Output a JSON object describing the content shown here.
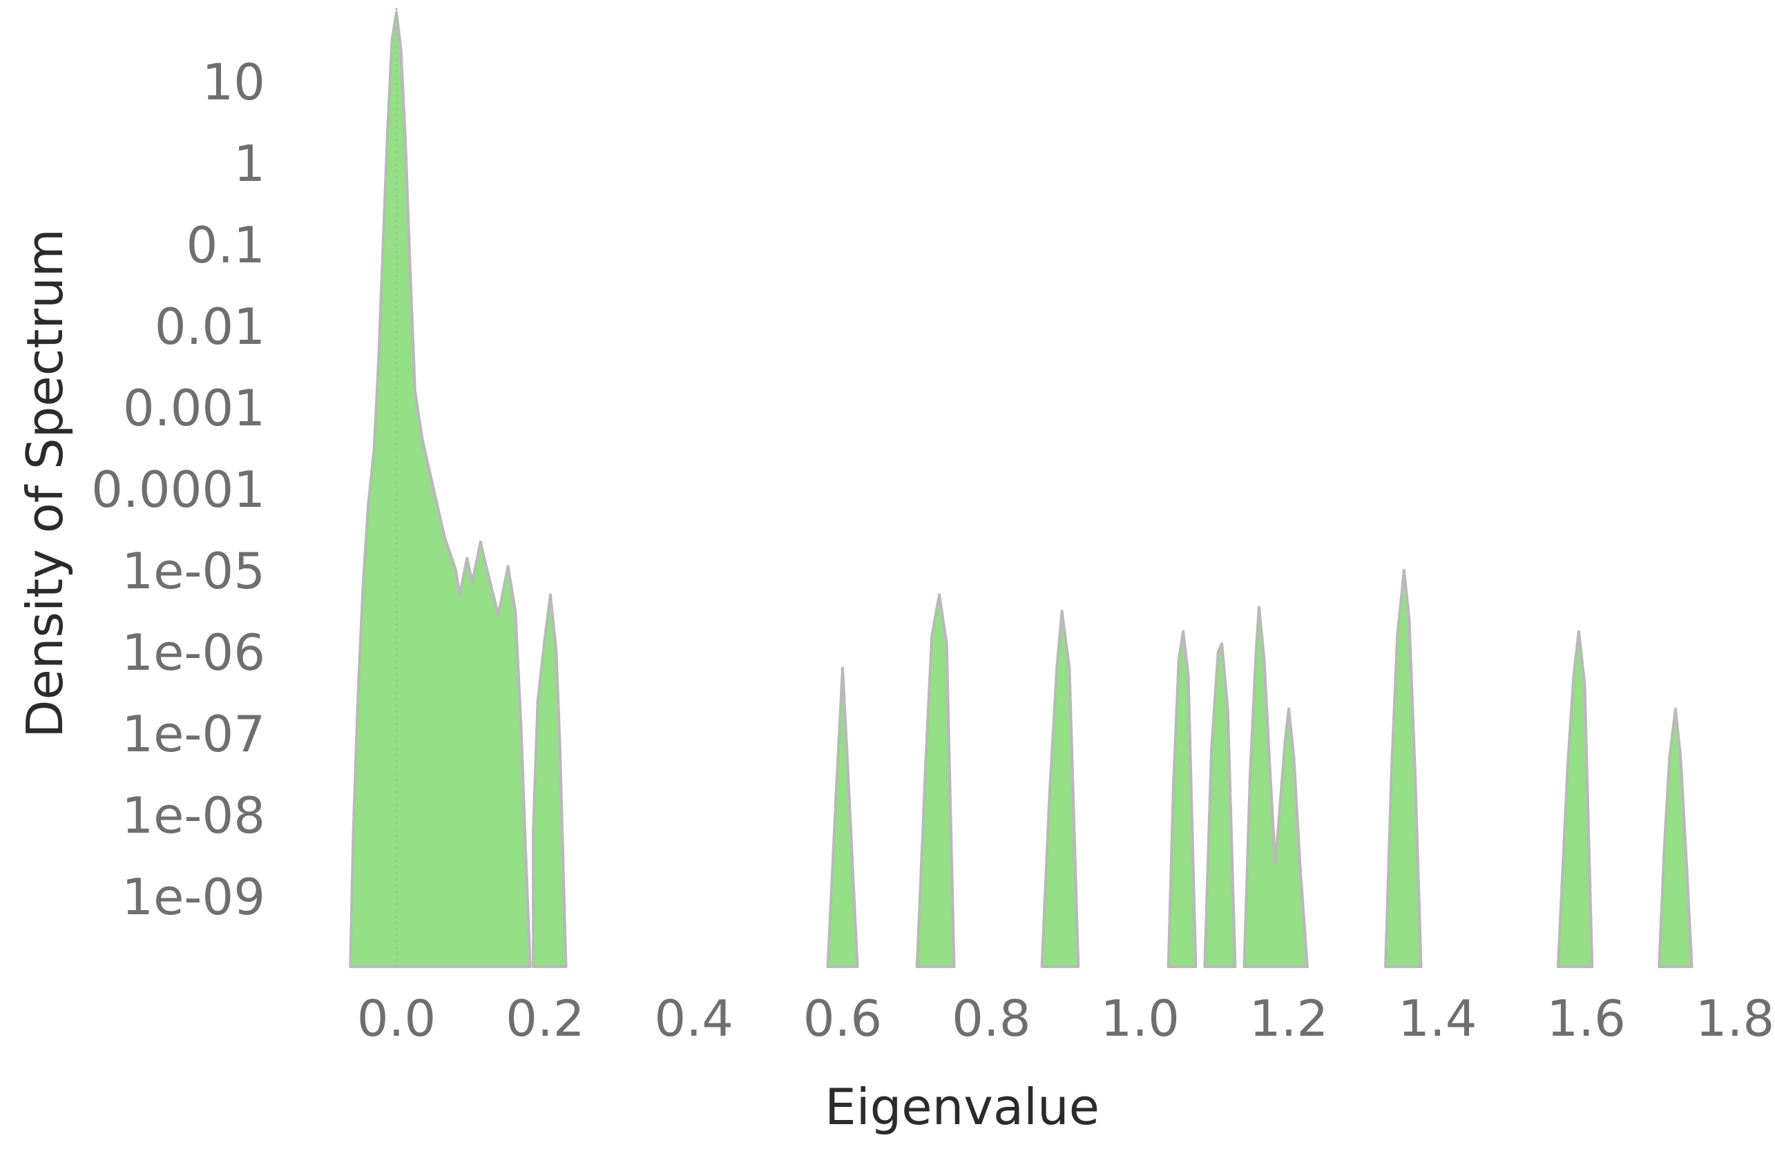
{
  "chart_data": {
    "type": "area",
    "title": "",
    "xlabel": "Eigenvalue",
    "ylabel": "Density of Spectrum",
    "xlim": [
      -0.065,
      1.8
    ],
    "ylim_log10": [
      -10,
      1.9
    ],
    "yscale": "log",
    "grid": false,
    "legend": "none",
    "x_ticks": [
      0.0,
      0.2,
      0.4,
      0.6,
      0.8,
      1.0,
      1.2,
      1.4,
      1.6,
      1.8
    ],
    "x_tick_labels": [
      "0.0",
      "0.2",
      "0.4",
      "0.6",
      "0.8",
      "1.0",
      "1.2",
      "1.4",
      "1.6",
      "1.8"
    ],
    "y_ticks_log10": [
      1,
      0,
      -1,
      -2,
      -3,
      -4,
      -5,
      -6,
      -7,
      -8,
      -9
    ],
    "y_tick_labels": [
      "10",
      "1",
      "0.1",
      "0.01",
      "0.001",
      "0.0001",
      "1e-05",
      "1e-06",
      "1e-07",
      "1e-08",
      "1e-09"
    ],
    "colors": {
      "fill": "#94de86",
      "outline": "#b9b9b9",
      "reference_line": "#8fc98a"
    },
    "reference_line_x": 0.0,
    "series": [
      {
        "values": [
          [
            -0.062,
            -10
          ],
          [
            -0.058,
            -8.2
          ],
          [
            -0.052,
            -6.6
          ],
          [
            -0.045,
            -5.2
          ],
          [
            -0.038,
            -4.2
          ],
          [
            -0.03,
            -3.5
          ],
          [
            -0.024,
            -2.4
          ],
          [
            -0.018,
            -1.0
          ],
          [
            -0.012,
            0.4
          ],
          [
            -0.006,
            1.5
          ],
          [
            0.0,
            1.85
          ],
          [
            0.006,
            1.4
          ],
          [
            0.012,
            0.3
          ],
          [
            0.018,
            -1.2
          ],
          [
            0.025,
            -2.8
          ],
          [
            0.035,
            -3.4
          ],
          [
            0.05,
            -4.0
          ],
          [
            0.065,
            -4.6
          ],
          [
            0.08,
            -5.0
          ],
          [
            0.085,
            -5.3
          ],
          [
            0.095,
            -4.85
          ],
          [
            0.102,
            -5.15
          ],
          [
            0.113,
            -4.65
          ],
          [
            0.122,
            -5.0
          ],
          [
            0.137,
            -5.55
          ],
          [
            0.15,
            -4.95
          ],
          [
            0.16,
            -5.5
          ],
          [
            0.168,
            -7.0
          ],
          [
            0.174,
            -8.5
          ],
          [
            0.18,
            -10
          ],
          [
            0.184,
            -8.2
          ],
          [
            0.19,
            -6.6
          ],
          [
            0.2,
            -5.8
          ],
          [
            0.207,
            -5.3
          ],
          [
            0.215,
            -6.0
          ],
          [
            0.22,
            -7.2
          ],
          [
            0.228,
            -10
          ],
          [
            0.58,
            -10
          ],
          [
            0.592,
            -7.6
          ],
          [
            0.6,
            -6.2
          ],
          [
            0.608,
            -7.6
          ],
          [
            0.62,
            -10
          ],
          [
            0.7,
            -10
          ],
          [
            0.712,
            -7.3
          ],
          [
            0.72,
            -5.8
          ],
          [
            0.73,
            -5.3
          ],
          [
            0.74,
            -5.9
          ],
          [
            0.75,
            -10
          ],
          [
            0.868,
            -10
          ],
          [
            0.878,
            -7.8
          ],
          [
            0.888,
            -6.2
          ],
          [
            0.895,
            -5.5
          ],
          [
            0.905,
            -6.2
          ],
          [
            0.917,
            -10
          ],
          [
            1.038,
            -10
          ],
          [
            1.045,
            -7.6
          ],
          [
            1.052,
            -6.1
          ],
          [
            1.058,
            -5.75
          ],
          [
            1.065,
            -6.3
          ],
          [
            1.075,
            -10
          ],
          [
            1.087,
            -10
          ],
          [
            1.096,
            -7.2
          ],
          [
            1.105,
            -6.0
          ],
          [
            1.11,
            -5.9
          ],
          [
            1.118,
            -6.7
          ],
          [
            1.128,
            -10
          ],
          [
            1.14,
            -10
          ],
          [
            1.148,
            -7.5
          ],
          [
            1.156,
            -6.0
          ],
          [
            1.16,
            -5.45
          ],
          [
            1.167,
            -6.1
          ],
          [
            1.175,
            -7.5
          ],
          [
            1.182,
            -8.6
          ],
          [
            1.195,
            -7.1
          ],
          [
            1.2,
            -6.7
          ],
          [
            1.207,
            -7.3
          ],
          [
            1.215,
            -8.6
          ],
          [
            1.225,
            -10
          ],
          [
            1.33,
            -10
          ],
          [
            1.338,
            -7.5
          ],
          [
            1.346,
            -5.8
          ],
          [
            1.355,
            -5.0
          ],
          [
            1.362,
            -5.6
          ],
          [
            1.37,
            -7.5
          ],
          [
            1.378,
            -10
          ],
          [
            1.562,
            -10
          ],
          [
            1.575,
            -7.4
          ],
          [
            1.583,
            -6.3
          ],
          [
            1.59,
            -5.75
          ],
          [
            1.598,
            -6.4
          ],
          [
            1.608,
            -10
          ],
          [
            1.698,
            -10
          ],
          [
            1.705,
            -8.4
          ],
          [
            1.712,
            -7.3
          ],
          [
            1.72,
            -6.7
          ],
          [
            1.727,
            -7.3
          ],
          [
            1.735,
            -8.6
          ],
          [
            1.742,
            -10
          ]
        ]
      }
    ]
  }
}
